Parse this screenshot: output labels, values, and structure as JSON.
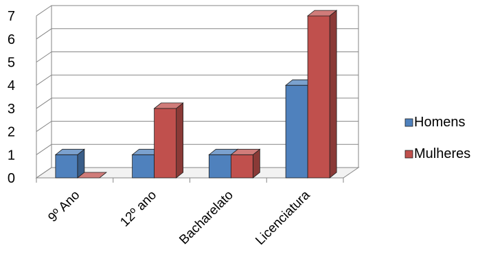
{
  "chart_data": {
    "type": "bar",
    "categories": [
      "9º Ano",
      "12º ano",
      "Bacharelato",
      "Licenciatura"
    ],
    "series": [
      {
        "name": "Homens",
        "values": [
          1,
          1,
          1,
          4
        ],
        "color": "#4f81bd"
      },
      {
        "name": "Mulheres",
        "values": [
          0,
          3,
          1,
          7
        ],
        "color": "#c0504d"
      }
    ],
    "title": "",
    "xlabel": "",
    "ylabel": "",
    "ylim": [
      0,
      7
    ],
    "yticks": [
      0,
      1,
      2,
      3,
      4,
      5,
      6,
      7
    ],
    "grid": true,
    "legend_position": "right",
    "style": "3d-clustered-column"
  }
}
